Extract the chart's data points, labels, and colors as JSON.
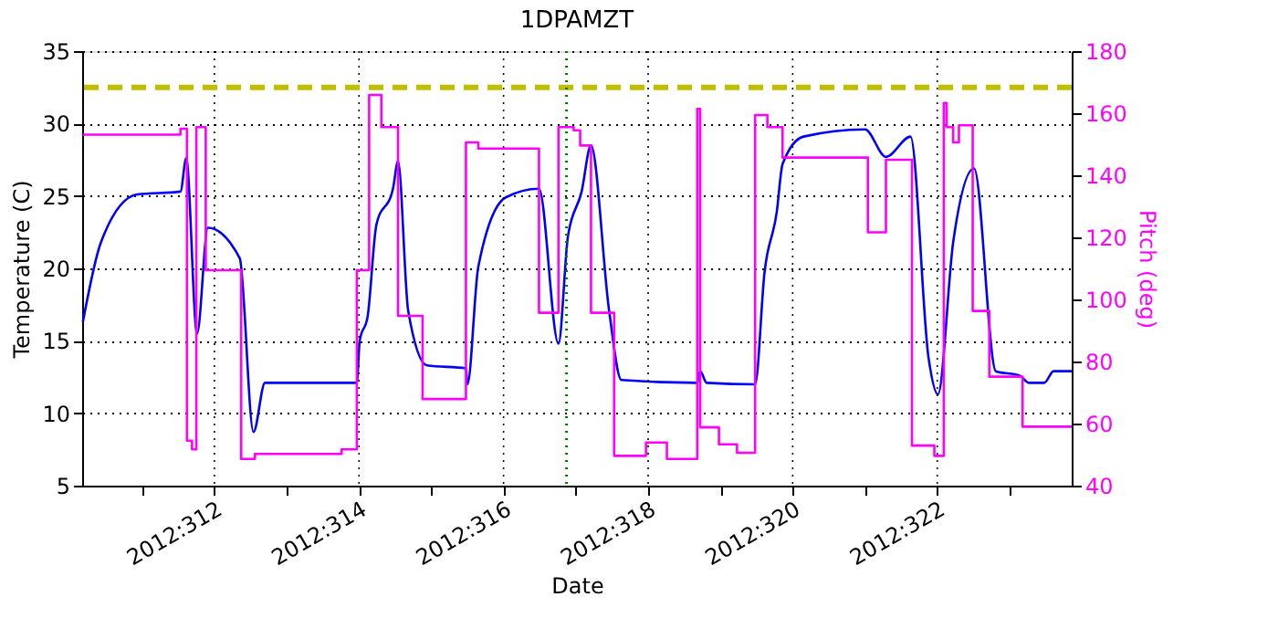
{
  "chart_data": {
    "type": "line",
    "title": "1DPAMZT",
    "xlabel": "Date",
    "ylabel": "Temperature (C)",
    "y2label": "Pitch (deg)",
    "xlim": [
      "2012-11-05T04:05",
      "2012-11-18T20:38"
    ],
    "xticks": [
      {
        "value": "2012-11-06",
        "label": null
      },
      {
        "value": "2012-11-07",
        "label": "2012:312"
      },
      {
        "value": "2012-11-08",
        "label": null
      },
      {
        "value": "2012-11-09",
        "label": "2012:314"
      },
      {
        "value": "2012-11-10",
        "label": null
      },
      {
        "value": "2012-11-11",
        "label": "2012:316"
      },
      {
        "value": "2012-11-12",
        "label": null
      },
      {
        "value": "2012-11-13",
        "label": "2012:318"
      },
      {
        "value": "2012-11-14",
        "label": null
      },
      {
        "value": "2012-11-15",
        "label": "2012:320"
      },
      {
        "value": "2012-11-16",
        "label": null
      },
      {
        "value": "2012-11-17",
        "label": "2012:322"
      },
      {
        "value": "2012-11-18",
        "label": null
      }
    ],
    "ylim": [
      5,
      35
    ],
    "yticks": [
      5,
      10,
      15,
      20,
      25,
      30,
      35
    ],
    "y2lim": [
      40,
      180
    ],
    "y2ticks": [
      40,
      60,
      80,
      100,
      120,
      140,
      160,
      180
    ],
    "grid": true,
    "series": [
      {
        "color": "#0000ff",
        "x": [
          "2012-11-05T04:19",
          "2012-11-05T10:19",
          "2012-11-05T22:19",
          "2012-11-06T12:43",
          "2012-11-06T14:38",
          "2012-11-06T18:14",
          "2012-11-06T21:50",
          "2012-11-07T08:24",
          "2012-11-07T12:58",
          "2012-11-07T16:48",
          "2012-11-08T23:17",
          "2012-11-09T00:14",
          "2012-11-09T02:53",
          "2012-11-09T05:46",
          "2012-11-09T11:17",
          "2012-11-09T12:58",
          "2012-11-09T16:19",
          "2012-11-09T22:34",
          "2012-11-10T11:31",
          "2012-11-10T12:00",
          "2012-11-10T15:36",
          "2012-11-11T00:43",
          "2012-11-11T11:46",
          "2012-11-11T18:14",
          "2012-11-11T21:22",
          "2012-11-12T01:55",
          "2012-11-12T05:02",
          "2012-11-12T11:02",
          "2012-11-12T15:07",
          "2012-11-13T16:19",
          "2012-11-13T17:17",
          "2012-11-13T19:26",
          "2012-11-14T11:31",
          "2012-11-14T14:38",
          "2012-11-14T18:43",
          "2012-11-14T20:38",
          "2012-11-15T03:36",
          "2012-11-16T00:00",
          "2012-11-16T06:58",
          "2012-11-16T15:07",
          "2012-11-16T21:07",
          "2012-11-17T00:14",
          "2012-11-17T05:17",
          "2012-11-17T12:14",
          "2012-11-17T19:26",
          "2012-11-18T03:22",
          "2012-11-18T06:29",
          "2012-11-18T11:31",
          "2012-11-18T14:38",
          "2012-11-18T20:38"
        ],
        "values": [
          16.3,
          21.8,
          25.1,
          25.3,
          27.6,
          15.5,
          22.8,
          20.7,
          8.7,
          12.1,
          12.1,
          15.0,
          16.7,
          23.0,
          25.5,
          27.4,
          17.1,
          13.3,
          13.1,
          12.0,
          20.1,
          24.9,
          25.5,
          14.8,
          22.2,
          25.3,
          28.5,
          17.1,
          12.3,
          12.1,
          12.9,
          12.1,
          12.0,
          19.7,
          23.9,
          27.2,
          29.1,
          29.6,
          27.7,
          29.1,
          13.8,
          11.3,
          21.8,
          26.9,
          12.9,
          12.6,
          12.1,
          12.1,
          12.9,
          12.9
        ]
      },
      {
        "type": "step",
        "axis": "y2",
        "color": "#ff00ff",
        "x": [
          "2012-11-05T04:19",
          "2012-11-06T12:43",
          "2012-11-06T14:53",
          "2012-11-06T16:34",
          "2012-11-06T18:00",
          "2012-11-06T21:07",
          "2012-11-07T08:53",
          "2012-11-07T13:26",
          "2012-11-08T18:14",
          "2012-11-08T23:17",
          "2012-11-09T03:22",
          "2012-11-09T07:26",
          "2012-11-09T12:58",
          "2012-11-09T21:07",
          "2012-11-10T11:31",
          "2012-11-10T15:36",
          "2012-11-11T11:46",
          "2012-11-11T18:14",
          "2012-11-11T23:17",
          "2012-11-12T01:26",
          "2012-11-12T05:02",
          "2012-11-12T12:43",
          "2012-11-12T23:17",
          "2012-11-13T06:14",
          "2012-11-13T16:19",
          "2012-11-13T17:17",
          "2012-11-13T23:31",
          "2012-11-14T05:31",
          "2012-11-14T11:31",
          "2012-11-14T15:36",
          "2012-11-14T20:38",
          "2012-11-16T00:58",
          "2012-11-16T06:58",
          "2012-11-16T15:36",
          "2012-11-16T23:02",
          "2012-11-17T02:10",
          "2012-11-17T03:07",
          "2012-11-17T05:17",
          "2012-11-17T07:12",
          "2012-11-17T11:46",
          "2012-11-17T17:17",
          "2012-11-18T04:19",
          "2012-11-18T20:38"
        ],
        "values": [
          153.1,
          155,
          54.5,
          51.7,
          155.5,
          109.4,
          48.6,
          50.2,
          51.7,
          109.4,
          165.9,
          155.5,
          94.7,
          67.9,
          150.6,
          148.6,
          95.7,
          155.5,
          154.5,
          149.6,
          95.7,
          49.6,
          53.9,
          48.6,
          161.4,
          58.8,
          53.3,
          50.6,
          159.4,
          155.5,
          145.7,
          121.6,
          145,
          52.9,
          49.6,
          163.3,
          155.5,
          150.6,
          156.1,
          96.3,
          75.1,
          59,
          59
        ]
      }
    ],
    "ref_lines": [
      {
        "axis": "y",
        "value": 32.5,
        "color": "#bfbf00",
        "line_style": "dashed"
      },
      {
        "axis": "x",
        "value": "2012-11-11T20:53",
        "color": "#008000",
        "line_style": "dotted"
      }
    ]
  }
}
